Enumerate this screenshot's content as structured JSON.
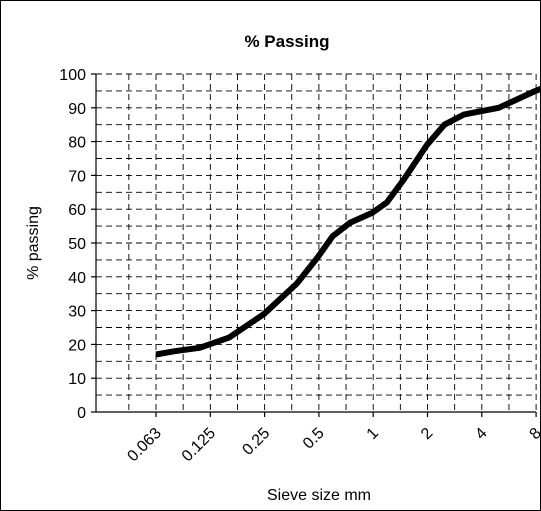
{
  "chart_data": {
    "type": "line",
    "title": "% Passing",
    "xlabel": "Sieve size mm",
    "ylabel": "% passing",
    "categories": [
      "0.063",
      "0.125",
      "0.25",
      "0.5",
      "1",
      "2",
      "4",
      "8"
    ],
    "ylim": [
      0,
      100
    ],
    "yticks": [
      "0",
      "10",
      "20",
      "30",
      "40",
      "50",
      "60",
      "70",
      "80",
      "90",
      "100"
    ],
    "grid": true,
    "series": [
      {
        "color": "#000000",
        "points": [
          {
            "x": 0.063,
            "y": 17
          },
          {
            "x": 0.08,
            "y": 18
          },
          {
            "x": 0.11,
            "y": 19
          },
          {
            "x": 0.16,
            "y": 22
          },
          {
            "x": 0.25,
            "y": 29
          },
          {
            "x": 0.38,
            "y": 38
          },
          {
            "x": 0.5,
            "y": 46
          },
          {
            "x": 0.6,
            "y": 52
          },
          {
            "x": 0.75,
            "y": 56
          },
          {
            "x": 1.0,
            "y": 59
          },
          {
            "x": 1.2,
            "y": 62
          },
          {
            "x": 1.5,
            "y": 69
          },
          {
            "x": 2.0,
            "y": 79
          },
          {
            "x": 2.5,
            "y": 85
          },
          {
            "x": 3.2,
            "y": 88
          },
          {
            "x": 4.0,
            "y": 89
          },
          {
            "x": 5.0,
            "y": 90
          },
          {
            "x": 8.0,
            "y": 95
          },
          {
            "x": 10.0,
            "y": 97
          }
        ]
      }
    ]
  }
}
